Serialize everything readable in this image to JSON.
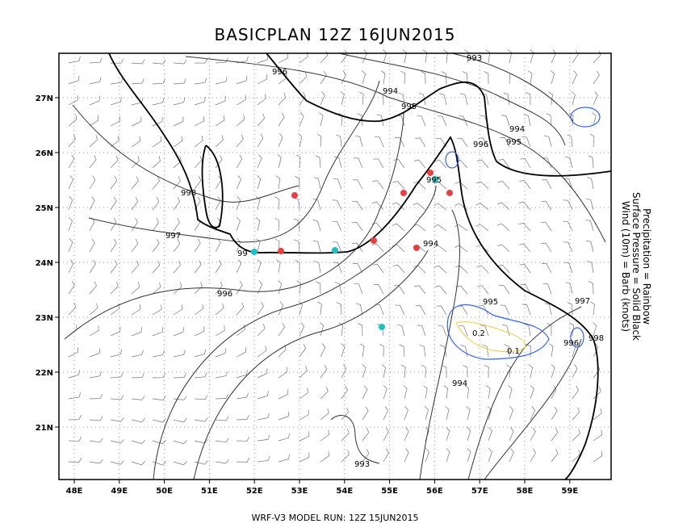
{
  "title": "BASICPLAN 12Z 16JUN2015",
  "footer": "WRF-V3 MODEL RUN: 12Z 15JUN2015",
  "legend": [
    "Precipitation = Rainbow",
    "Surface Pressure = Solid Black",
    "Wind (10m) = Barb (knots)"
  ],
  "x_ticks": [
    "48E",
    "49E",
    "50E",
    "51E",
    "52E",
    "53E",
    "54E",
    "55E",
    "56E",
    "57E",
    "58E",
    "59E"
  ],
  "y_ticks": [
    "27N",
    "26N",
    "25N",
    "24N",
    "23N",
    "22N",
    "21N"
  ],
  "contour_labels": [
    "993",
    "996",
    "994",
    "995",
    "994",
    "995",
    "996",
    "995",
    "998",
    "997",
    "99",
    "996",
    "994",
    "995",
    "997",
    "998",
    "996",
    "994",
    "993"
  ],
  "precip_labels": [
    "0.2",
    "0.1"
  ]
}
